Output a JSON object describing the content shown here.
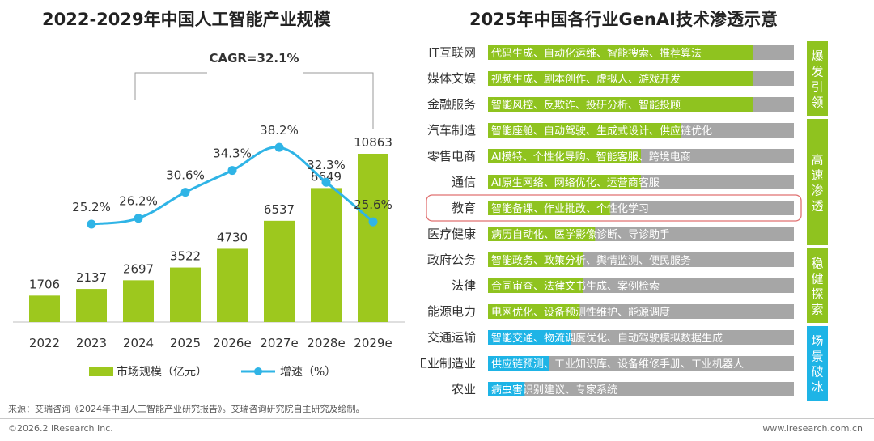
{
  "left_chart": {
    "title": "2022-2029年中国人工智能产业规模",
    "cagr_label": "CAGR=32.1%",
    "legend": {
      "bar": "市场规模（亿元）",
      "line": "增速（%）"
    },
    "colors": {
      "bar": "#9dc81e",
      "line": "#2fb4e6"
    }
  },
  "right_chart": {
    "title": "2025年中国各行业GenAI技术渗透示意",
    "colors": {
      "green": "#8fc31f",
      "gray": "#a6a6a6",
      "blue": "#1eb4e6",
      "highlight": "#e07070"
    },
    "highlight_row": "教育",
    "rows": [
      {
        "label": "IT互联网",
        "text": "代码生成、自动化运维、智能搜索、推荐算法",
        "level": 0.865,
        "color": "green"
      },
      {
        "label": "媒体文娱",
        "text": "视频生成、剧本创作、虚拟人、游戏开发",
        "level": 0.865,
        "color": "green"
      },
      {
        "label": "金融服务",
        "text": "智能风控、反欺诈、投研分析、智能投顾",
        "level": 0.865,
        "color": "green"
      },
      {
        "label": "汽车制造",
        "text": "智能座舱、自动驾驶、生成式设计、供应链优化",
        "level": 0.63,
        "color": "green"
      },
      {
        "label": "零售电商",
        "text": "AI模特、个性化导购、智能客服、跨境电商",
        "level": 0.5,
        "color": "green"
      },
      {
        "label": "通信",
        "text": "AI原生网络、网络优化、运营商客服",
        "level": 0.5,
        "color": "green"
      },
      {
        "label": "教育",
        "text": "智能备课、作业批改、个性化学习",
        "level": 0.4,
        "color": "green"
      },
      {
        "label": "医疗健康",
        "text": "病历自动化、医学影像诊断、导诊助手",
        "level": 0.35,
        "color": "green"
      },
      {
        "label": "政府公务",
        "text": "智能政务、政策分析、舆情监测、便民服务",
        "level": 0.31,
        "color": "green"
      },
      {
        "label": "法律",
        "text": "合同审查、法律文书生成、案例检索",
        "level": 0.31,
        "color": "green"
      },
      {
        "label": "能源电力",
        "text": "电网优化、设备预测性维护、能源调度",
        "level": 0.3,
        "color": "green"
      },
      {
        "label": "交通运输",
        "text": "智能交通、物流调度优化、自动驾驶模拟数据生成",
        "level": 0.27,
        "color": "blue"
      },
      {
        "label": "工业制造业",
        "text": "供应链预测、工业知识库、设备维修手册、工业机器人",
        "level": 0.2,
        "color": "blue"
      },
      {
        "label": "农业",
        "text": "病虫害识别建议、专家系统",
        "level": 0.12,
        "color": "blue"
      }
    ],
    "groups": [
      {
        "label": "爆发引领",
        "chars": [
          "爆",
          "发",
          "引",
          "领"
        ],
        "color": "green",
        "row_start": 0,
        "row_end": 2
      },
      {
        "label": "高速渗透",
        "chars": [
          "高",
          "速",
          "渗",
          "透"
        ],
        "color": "green",
        "row_start": 3,
        "row_end": 7
      },
      {
        "label": "稳健探索",
        "chars": [
          "稳",
          "健",
          "探",
          "索"
        ],
        "color": "green",
        "row_start": 8,
        "row_end": 10
      },
      {
        "label": "场景破冰",
        "chars": [
          "场",
          "景",
          "破",
          "冰"
        ],
        "color": "blue",
        "row_start": 11,
        "row_end": 13
      }
    ]
  },
  "chart_data": [
    {
      "type": "bar",
      "title": "2022-2029年中国人工智能产业规模",
      "categories": [
        "2022",
        "2023",
        "2024",
        "2025",
        "2026e",
        "2027e",
        "2028e",
        "2029e"
      ],
      "series": [
        {
          "name": "市场规模（亿元）",
          "type": "bar",
          "values": [
            1706,
            2137,
            2697,
            3522,
            4730,
            6537,
            8649,
            10863
          ]
        },
        {
          "name": "增速（%）",
          "type": "line",
          "values": [
            null,
            25.2,
            26.2,
            30.6,
            34.3,
            38.2,
            32.3,
            25.6
          ]
        }
      ],
      "annotations": [
        "CAGR=32.1%"
      ],
      "value_labels": [
        "1706",
        "2137",
        "2697",
        "3522",
        "4730",
        "6537",
        "8649",
        "10863"
      ],
      "rate_labels": [
        "25.2%",
        "26.2%",
        "30.6%",
        "34.3%",
        "38.2%",
        "32.3%",
        "25.6%"
      ],
      "legend": "bottom"
    },
    {
      "type": "bar",
      "orientation": "horizontal",
      "title": "2025年中国各行业GenAI技术渗透示意",
      "categories": [
        "IT互联网",
        "媒体文娱",
        "金融服务",
        "汽车制造",
        "零售电商",
        "通信",
        "教育",
        "医疗健康",
        "政府公务",
        "法律",
        "能源电力",
        "交通运输",
        "工业制造业",
        "农业"
      ],
      "values": [
        0.865,
        0.865,
        0.865,
        0.63,
        0.5,
        0.5,
        0.4,
        0.35,
        0.31,
        0.31,
        0.3,
        0.27,
        0.2,
        0.12
      ],
      "groups": [
        "爆发引领",
        "高速渗透",
        "稳健探索",
        "场景破冰"
      ]
    }
  ],
  "footer": {
    "source": "来源：艾瑞咨询《2024年中国人工智能产业研究报告》。艾瑞咨询研究院自主研究及绘制。",
    "copyright": "©2026.2 iResearch Inc.",
    "website": "www.iresearch.com.cn"
  }
}
